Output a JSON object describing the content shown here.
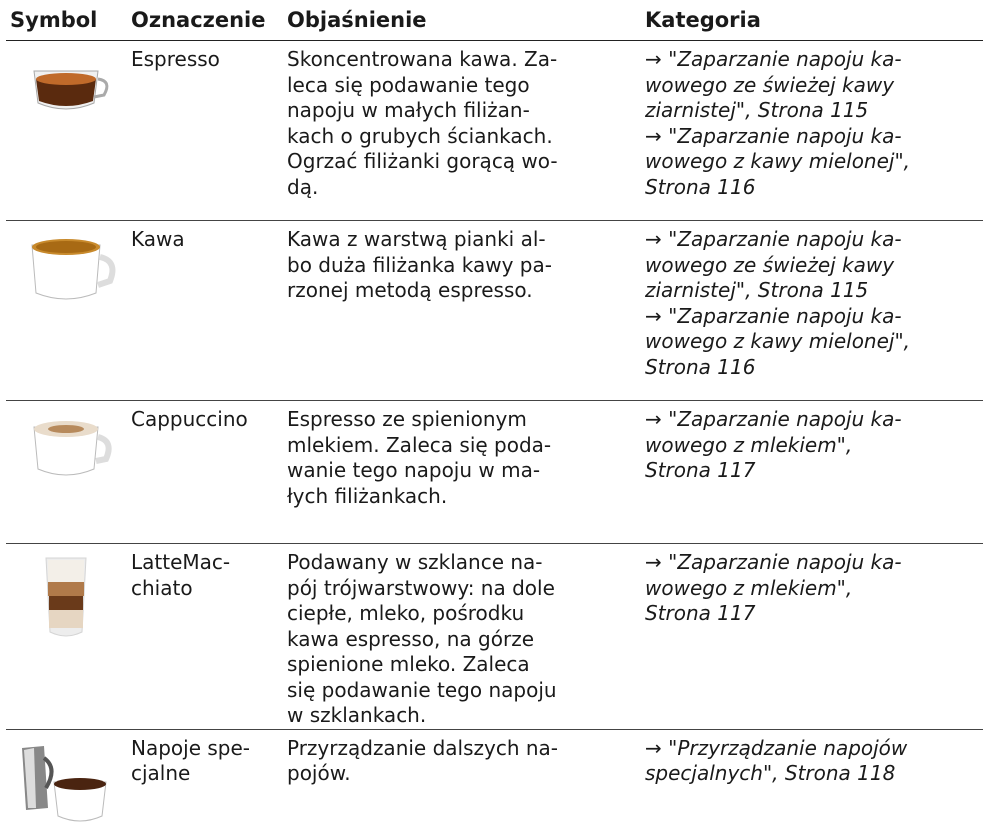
{
  "table": {
    "headers": [
      "Symbol",
      "Oznaczenie",
      "Objaśnienie",
      "Kategoria"
    ],
    "rows": [
      {
        "name": [
          "Espresso"
        ],
        "description": [
          "Skoncentrowana kawa. Za-",
          "leca się podawanie tego",
          "napoju w małych filiżan-",
          "kach o grubych ściankach.",
          "Ogrzać filiżanki gorącą wo-",
          "dą."
        ],
        "category": [
          {
            "arrow": "→",
            "lines": [
              "\"Zaparzanie napoju ka-",
              "wowego ze świeżej kawy",
              "ziarnistej\", Strona 115"
            ]
          },
          {
            "arrow": "→",
            "lines": [
              "\"Zaparzanie napoju ka-",
              "wowego z kawy mielonej\",",
              "Strona 116"
            ]
          }
        ]
      },
      {
        "name": [
          "Kawa"
        ],
        "description": [
          "Kawa z warstwą pianki al-",
          "bo duża filiżanka kawy pa-",
          "rzonej metodą espresso."
        ],
        "category": [
          {
            "arrow": "→",
            "lines": [
              "\"Zaparzanie napoju ka-",
              "wowego ze świeżej kawy",
              "ziarnistej\", Strona 115"
            ]
          },
          {
            "arrow": "→",
            "lines": [
              "\"Zaparzanie napoju ka-",
              "wowego z kawy mielonej\",",
              "Strona 116"
            ]
          }
        ]
      },
      {
        "name": [
          "Cappuccino"
        ],
        "description": [
          "Espresso ze spienionym",
          "mlekiem. Zaleca się poda-",
          "wanie tego napoju w ma-",
          "łych filiżankach."
        ],
        "category": [
          {
            "arrow": "→",
            "lines": [
              "\"Zaparzanie napoju ka-",
              "wowego z mlekiem\",",
              "Strona 117"
            ]
          }
        ]
      },
      {
        "name": [
          "LatteMac-",
          "chiato"
        ],
        "description": [
          "Podawany w szklance na-",
          "pój trójwarstwowy: na dole",
          "ciepłe, mleko, pośrodku",
          "kawa espresso, na górze",
          "spienione mleko. Zaleca",
          "się podawanie tego napoju",
          "w szklankach."
        ],
        "category": [
          {
            "arrow": "→",
            "lines": [
              "\"Zaparzanie napoju ka-",
              "wowego z mlekiem\",",
              "Strona 117"
            ]
          }
        ]
      },
      {
        "name": [
          "Napoje spe-",
          "cjalne"
        ],
        "description": [
          "Przyrządzanie dalszych na-",
          "pojów."
        ],
        "category": [
          {
            "arrow": "→",
            "lines": [
              "\"Przyrządzanie napojów",
              "specjalnych\", Strona 118"
            ]
          }
        ]
      }
    ]
  }
}
